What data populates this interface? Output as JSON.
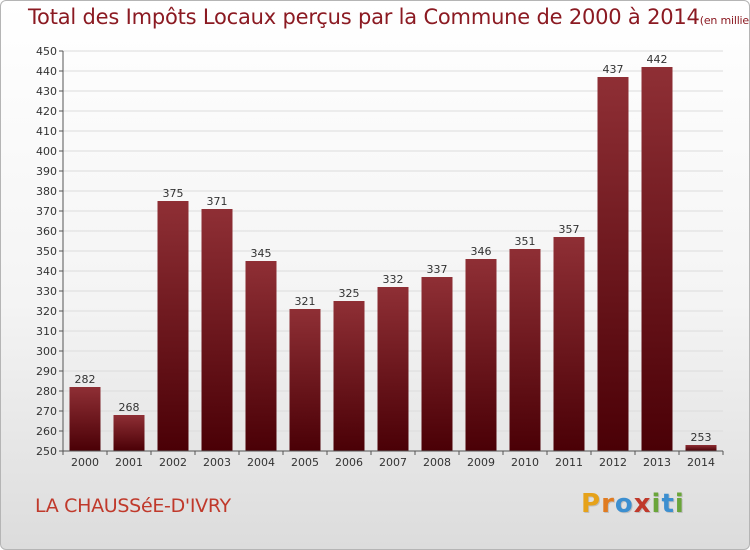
{
  "title": {
    "main": "Total des Impôts Locaux perçus par la Commune de 2000 à 2014",
    "unit": "(en milliers d'€)"
  },
  "commune": "LA CHAUSSéE-D'IVRY",
  "logo": {
    "letters": [
      "P",
      "r",
      "o",
      "x",
      "i",
      "t",
      "i"
    ],
    "colors": [
      "#e6a21a",
      "#e07b20",
      "#3c8fd0",
      "#c0392b",
      "#6aa53a",
      "#3c8fd0",
      "#6aa53a"
    ]
  },
  "colors": {
    "bar_top": "#8f2f35",
    "bar_bottom": "#4a0006",
    "text": "#333333",
    "grid": "#dcdcdc"
  },
  "chart_data": {
    "type": "bar",
    "title": "Total des Impôts Locaux perçus par la Commune de 2000 à 2014",
    "xlabel": "",
    "ylabel": "",
    "categories": [
      "2000",
      "2001",
      "2002",
      "2003",
      "2004",
      "2005",
      "2006",
      "2007",
      "2008",
      "2009",
      "2010",
      "2011",
      "2012",
      "2013",
      "2014"
    ],
    "values": [
      282,
      268,
      375,
      371,
      345,
      321,
      325,
      332,
      337,
      346,
      351,
      357,
      437,
      442,
      253
    ],
    "ylim": [
      250,
      450
    ],
    "yticks": [
      250,
      260,
      270,
      280,
      290,
      300,
      310,
      320,
      330,
      340,
      350,
      360,
      370,
      380,
      390,
      400,
      410,
      420,
      430,
      440,
      450
    ],
    "grid": true
  }
}
